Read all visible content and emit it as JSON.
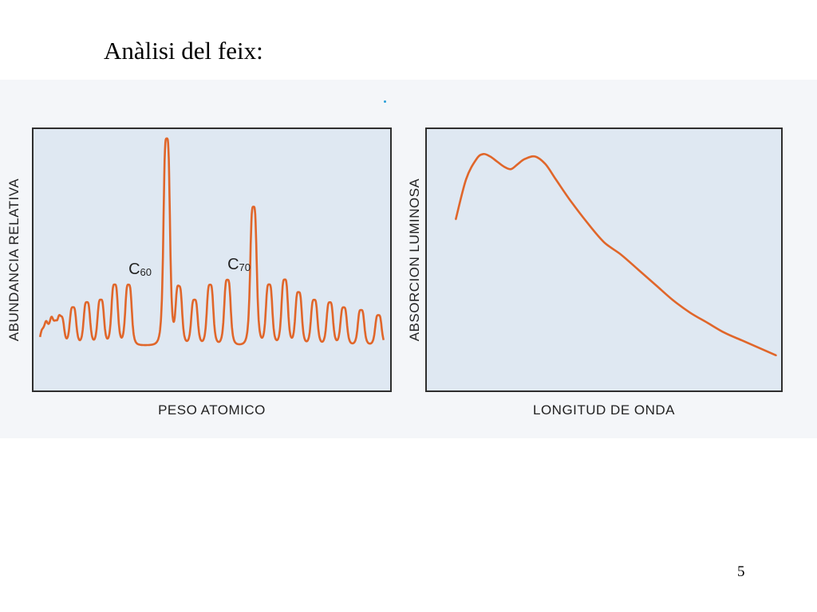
{
  "slide": {
    "title": "Anàlisi del feix:",
    "page_number": "5"
  },
  "colors": {
    "curve": "#e0662a",
    "panel": "#dfe8f2",
    "frame": "#2e2e2e"
  },
  "chart_data": [
    {
      "type": "line",
      "xlabel": "PESO ATOMICO",
      "ylabel": "ABUNDANCIA RELATIVA",
      "annotations": [
        {
          "base": "C",
          "sub": "60",
          "peak_index": 8
        },
        {
          "base": "C",
          "sub": "70",
          "peak_index": 13
        }
      ],
      "xlim": [
        0,
        100
      ],
      "ylim": [
        0,
        100
      ],
      "baseline": 16,
      "peak_width": 0.9,
      "peaks": [
        {
          "x": 1.5,
          "y": 22
        },
        {
          "x": 3.0,
          "y": 22
        },
        {
          "x": 4.5,
          "y": 24
        },
        {
          "x": 6.5,
          "y": 27
        },
        {
          "x": 10.0,
          "y": 31
        },
        {
          "x": 14.0,
          "y": 33
        },
        {
          "x": 18.0,
          "y": 34
        },
        {
          "x": 22.0,
          "y": 40
        },
        {
          "x": 26.0,
          "y": 40
        },
        {
          "x": 37.0,
          "y": 98
        },
        {
          "x": 40.5,
          "y": 39
        },
        {
          "x": 45.0,
          "y": 34
        },
        {
          "x": 49.5,
          "y": 40
        },
        {
          "x": 54.5,
          "y": 42
        },
        {
          "x": 62.0,
          "y": 71
        },
        {
          "x": 66.5,
          "y": 40
        },
        {
          "x": 71.0,
          "y": 42
        },
        {
          "x": 75.0,
          "y": 37
        },
        {
          "x": 79.5,
          "y": 34
        },
        {
          "x": 84.0,
          "y": 33
        },
        {
          "x": 88.0,
          "y": 31
        },
        {
          "x": 93.0,
          "y": 30
        },
        {
          "x": 98.0,
          "y": 28
        }
      ]
    },
    {
      "type": "line",
      "xlabel": "LONGITUD DE ONDA",
      "ylabel": "ABSORCION LUMINOSA",
      "xlim": [
        0,
        100
      ],
      "ylim": [
        0,
        100
      ],
      "x": [
        7,
        10,
        13,
        15,
        17,
        19,
        21,
        23,
        25,
        27,
        30,
        33,
        36,
        40,
        45,
        50,
        55,
        60,
        65,
        70,
        75,
        80,
        85,
        90,
        95,
        100
      ],
      "y": [
        66,
        82,
        90,
        92,
        91,
        89,
        87,
        86,
        88,
        90,
        91,
        88,
        82,
        74,
        65,
        57,
        52,
        46,
        40,
        34,
        29,
        25,
        21,
        18,
        15,
        12
      ]
    }
  ]
}
